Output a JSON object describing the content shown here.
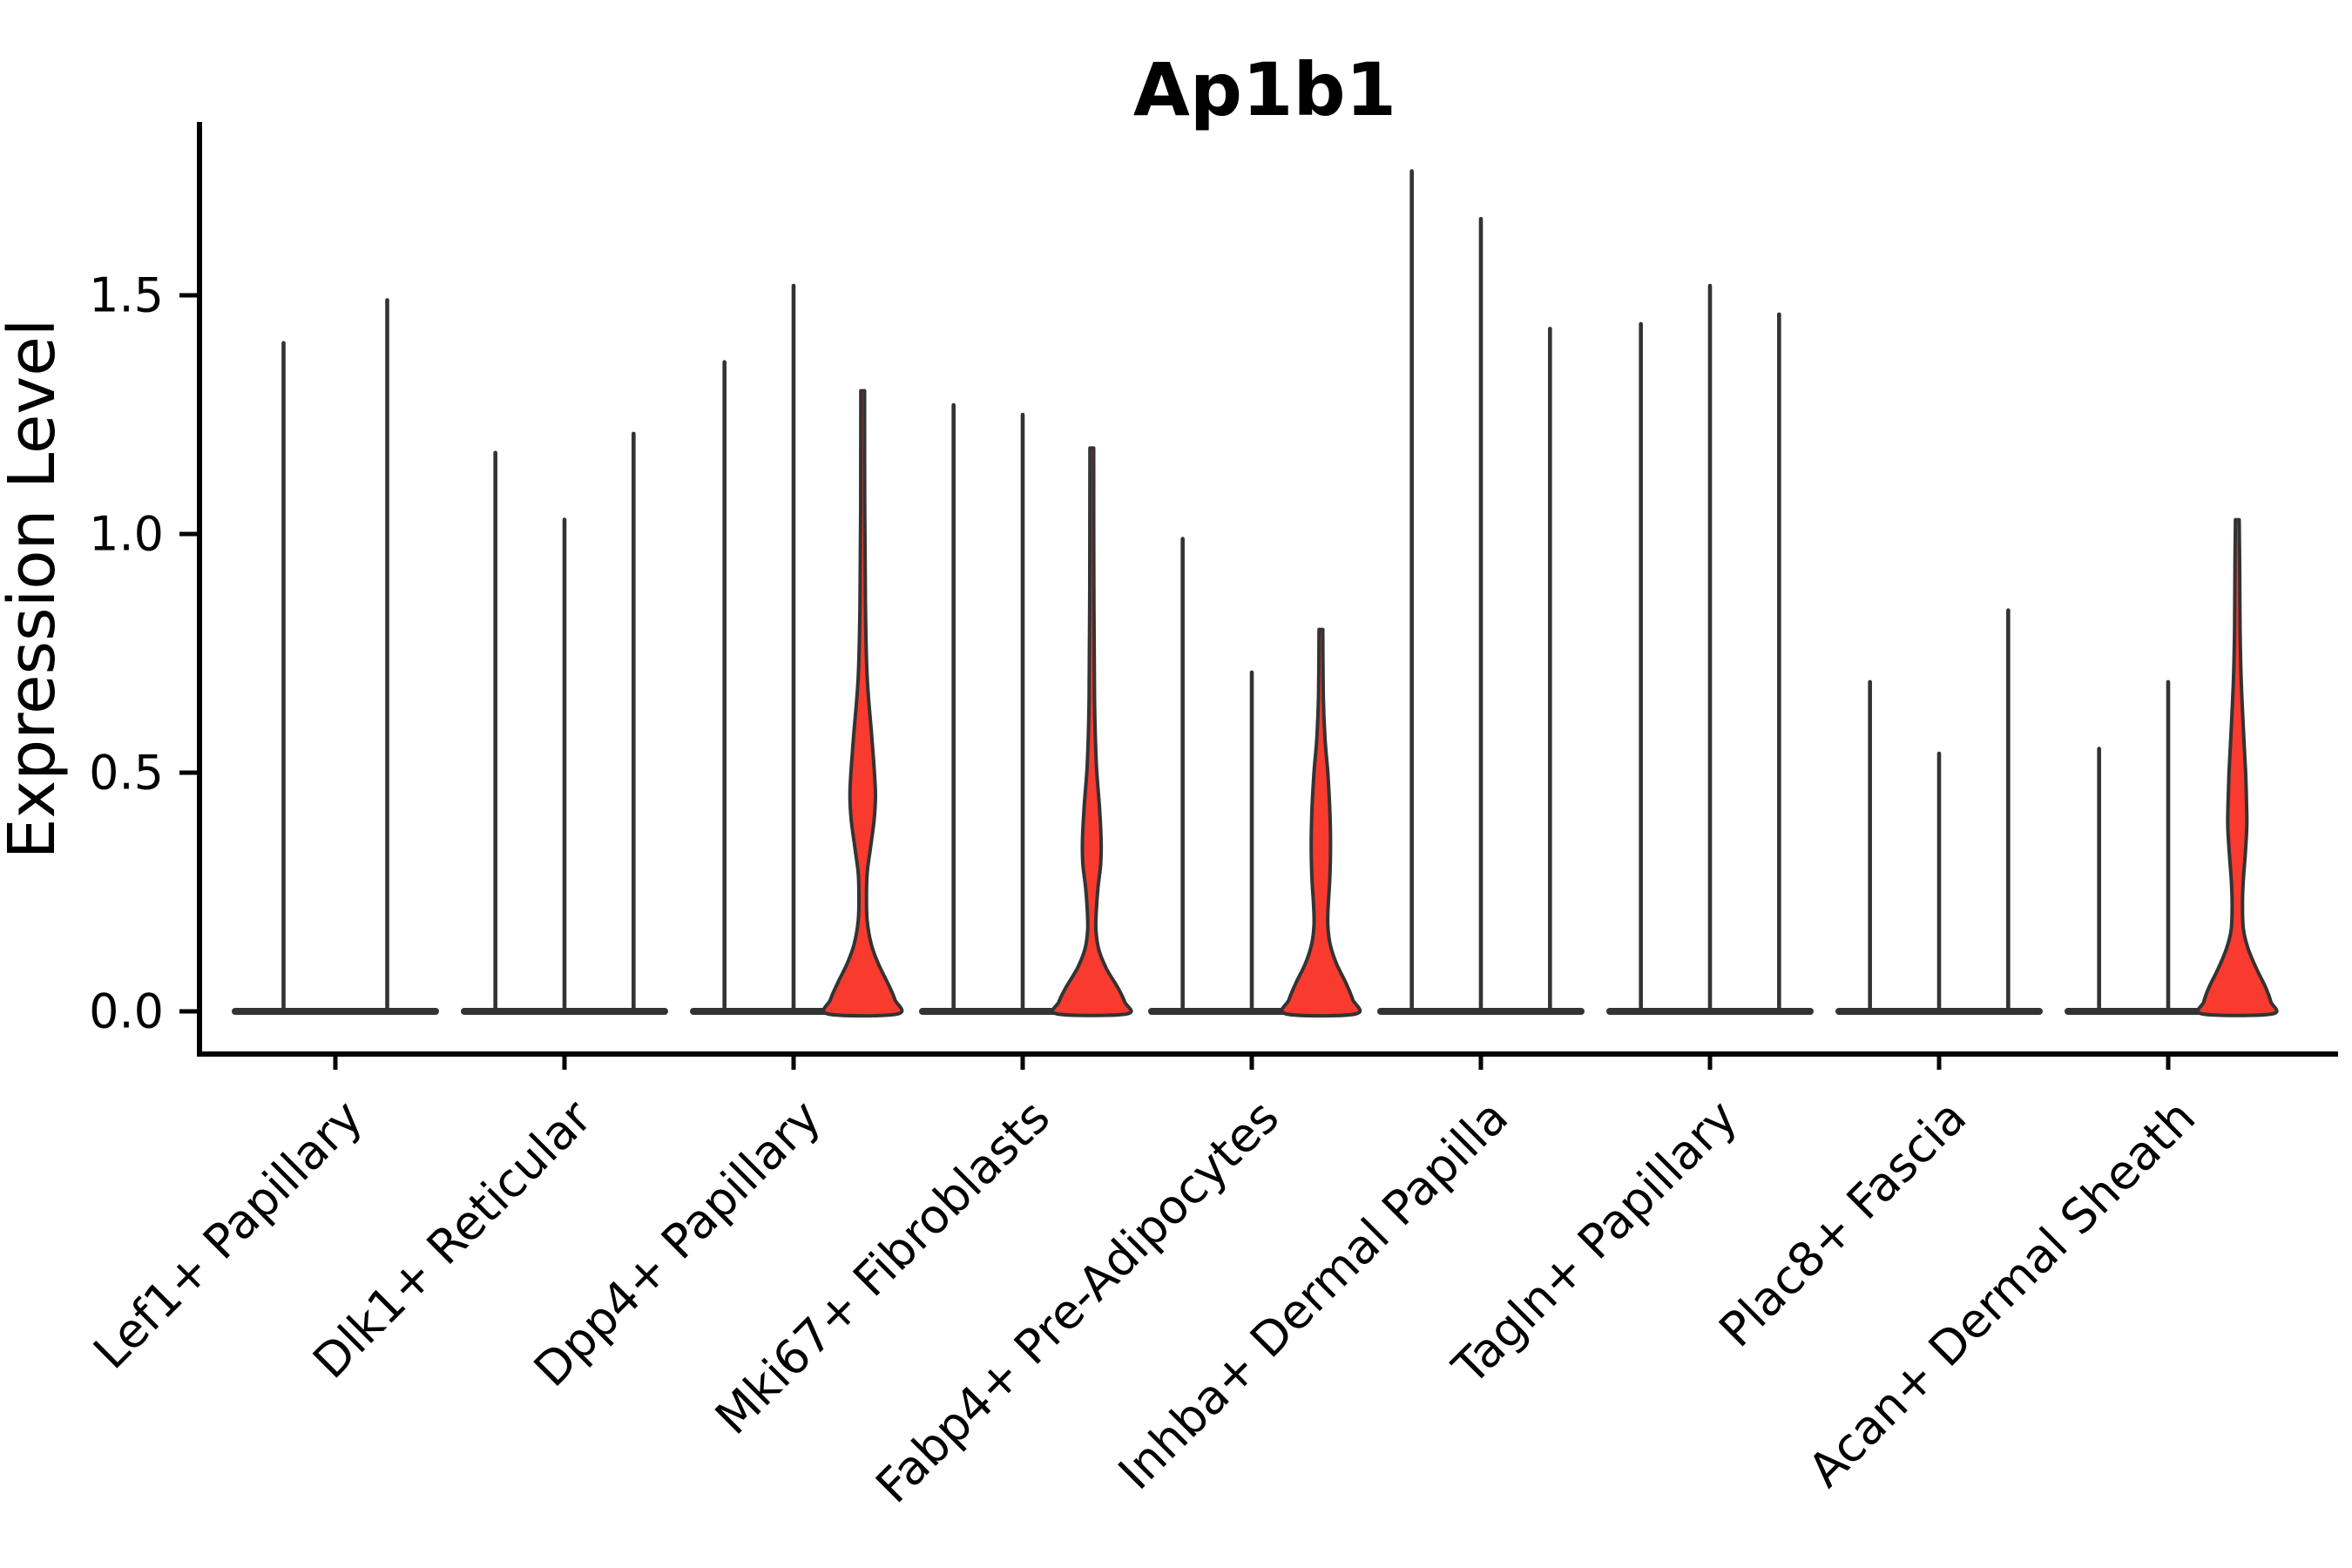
{
  "title": "Ap1b1",
  "y_axis": {
    "label": "Expression Level",
    "tick_labels": [
      "0.0",
      "0.5",
      "1.0",
      "1.5"
    ],
    "tick_values": [
      0,
      0.5,
      1.0,
      1.5
    ]
  },
  "chart_data": {
    "type": "violin",
    "title": "Ap1b1",
    "xlabel": "",
    "ylabel": "Expression Level",
    "ylim": [
      -0.09,
      1.86
    ],
    "grid": false,
    "legend": "none",
    "ytick_labels": [
      "0.0",
      "0.5",
      "1.0",
      "1.5"
    ],
    "ytick_values": [
      0,
      0.5,
      1.0,
      1.5
    ],
    "categories": [
      "Lef1+ Papillary",
      "Dlk1+ Reticular",
      "Dpp4+ Papillary",
      "Mki67+ Fibroblasts",
      "Fabp4+ Pre-Adipocytes",
      "Inhba+ Dermal Papilla",
      "Tagln+ Papillary",
      "Plac8+ Fascia",
      "Acan+ Dermal Sheath"
    ],
    "groups": [
      {
        "category": "Lef1+ Papillary",
        "violins": [
          {
            "max": 1.4,
            "highlighted": false
          },
          {
            "max": 1.49,
            "highlighted": false
          }
        ]
      },
      {
        "category": "Dlk1+ Reticular",
        "violins": [
          {
            "max": 1.17,
            "highlighted": false
          },
          {
            "max": 1.03,
            "highlighted": false
          },
          {
            "max": 1.21,
            "highlighted": false
          }
        ]
      },
      {
        "category": "Dpp4+ Papillary",
        "violins": [
          {
            "max": 1.36,
            "highlighted": false
          },
          {
            "max": 1.52,
            "highlighted": false
          },
          {
            "max": 1.3,
            "highlighted": true,
            "profile": [
              [
                1.3,
                0.055
              ],
              [
                1.05,
                0.06
              ],
              [
                0.85,
                0.08
              ],
              [
                0.7,
                0.13
              ],
              [
                0.57,
                0.27
              ],
              [
                0.5,
                0.34
              ],
              [
                0.45,
                0.37
              ],
              [
                0.4,
                0.33
              ],
              [
                0.34,
                0.22
              ],
              [
                0.29,
                0.13
              ],
              [
                0.24,
                0.11
              ],
              [
                0.19,
                0.13
              ],
              [
                0.14,
                0.25
              ],
              [
                0.1,
                0.45
              ],
              [
                0.06,
                0.72
              ],
              [
                0.025,
                0.93
              ],
              [
                0.0,
                1.0
              ]
            ]
          }
        ]
      },
      {
        "category": "Mki67+ Fibroblasts",
        "violins": [
          {
            "max": 1.27,
            "highlighted": false
          },
          {
            "max": 1.25,
            "highlighted": false
          },
          {
            "max": 1.18,
            "highlighted": true,
            "profile": [
              [
                1.18,
                0.055
              ],
              [
                0.9,
                0.06
              ],
              [
                0.65,
                0.08
              ],
              [
                0.52,
                0.13
              ],
              [
                0.43,
                0.22
              ],
              [
                0.36,
                0.27
              ],
              [
                0.31,
                0.26
              ],
              [
                0.26,
                0.18
              ],
              [
                0.21,
                0.13
              ],
              [
                0.17,
                0.12
              ],
              [
                0.13,
                0.2
              ],
              [
                0.09,
                0.42
              ],
              [
                0.05,
                0.75
              ],
              [
                0.02,
                0.95
              ],
              [
                0.0,
                1.0
              ]
            ]
          }
        ]
      },
      {
        "category": "Fabp4+ Pre-Adipocytes",
        "violins": [
          {
            "max": 0.99,
            "highlighted": false
          },
          {
            "max": 0.71,
            "highlighted": false
          },
          {
            "max": 0.8,
            "highlighted": true,
            "profile": [
              [
                0.8,
                0.055
              ],
              [
                0.66,
                0.07
              ],
              [
                0.57,
                0.12
              ],
              [
                0.5,
                0.2
              ],
              [
                0.42,
                0.26
              ],
              [
                0.345,
                0.28
              ],
              [
                0.28,
                0.26
              ],
              [
                0.22,
                0.21
              ],
              [
                0.18,
                0.2
              ],
              [
                0.14,
                0.27
              ],
              [
                0.1,
                0.45
              ],
              [
                0.06,
                0.72
              ],
              [
                0.025,
                0.92
              ],
              [
                0.0,
                1.0
              ]
            ]
          }
        ]
      },
      {
        "category": "Inhba+ Dermal Papilla",
        "violins": [
          {
            "max": 1.76,
            "highlighted": false
          },
          {
            "max": 1.66,
            "highlighted": false
          },
          {
            "max": 1.43,
            "highlighted": false
          }
        ]
      },
      {
        "category": "Tagln+ Papillary",
        "violins": [
          {
            "max": 1.44,
            "highlighted": false
          },
          {
            "max": 1.52,
            "highlighted": false
          },
          {
            "max": 1.46,
            "highlighted": false
          }
        ]
      },
      {
        "category": "Plac8+ Fascia",
        "violins": [
          {
            "max": 0.69,
            "highlighted": false
          },
          {
            "max": 0.54,
            "highlighted": false
          },
          {
            "max": 0.84,
            "highlighted": false
          }
        ]
      },
      {
        "category": "Acan+ Dermal Sheath",
        "violins": [
          {
            "max": 0.55,
            "highlighted": false
          },
          {
            "max": 0.69,
            "highlighted": false
          },
          {
            "max": 1.03,
            "highlighted": true,
            "profile": [
              [
                1.03,
                0.055
              ],
              [
                0.92,
                0.07
              ],
              [
                0.8,
                0.08
              ],
              [
                0.7,
                0.11
              ],
              [
                0.6,
                0.17
              ],
              [
                0.5,
                0.24
              ],
              [
                0.43,
                0.27
              ],
              [
                0.387,
                0.275
              ],
              [
                0.33,
                0.23
              ],
              [
                0.27,
                0.17
              ],
              [
                0.22,
                0.15
              ],
              [
                0.17,
                0.18
              ],
              [
                0.13,
                0.32
              ],
              [
                0.09,
                0.55
              ],
              [
                0.05,
                0.82
              ],
              [
                0.02,
                0.97
              ],
              [
                0.0,
                1.0
              ]
            ]
          }
        ]
      }
    ],
    "colors": {
      "violin_fill": "#f93a2e",
      "violin_edge": "#333333",
      "axis": "#000000",
      "text": "#000000",
      "background": "#ffffff"
    }
  }
}
